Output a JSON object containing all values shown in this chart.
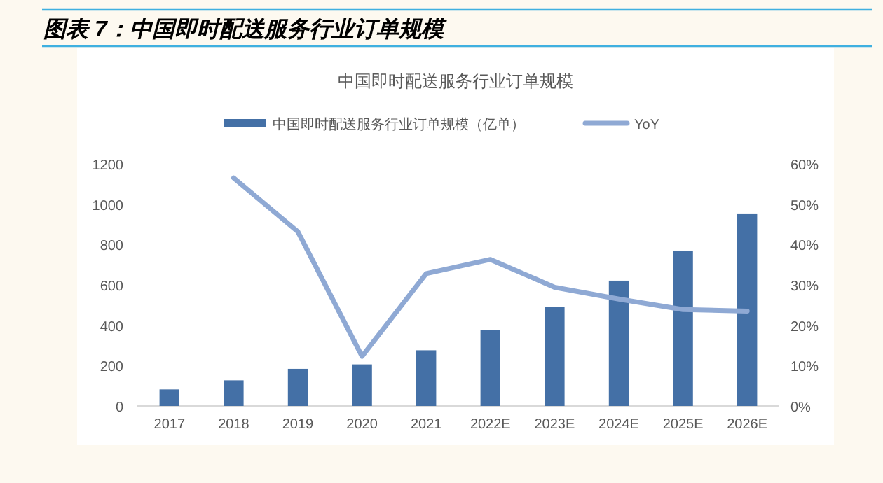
{
  "chart_data": {
    "type": "bar",
    "title": "图表 7：中国即时配送服务行业订单规模",
    "subtitle": "中国即时配送服务行业订单规模",
    "categories": [
      "2017",
      "2018",
      "2019",
      "2020",
      "2021",
      "2022E",
      "2023E",
      "2024E",
      "2025E",
      "2026E"
    ],
    "series": [
      {
        "name": "中国即时配送服务行业订单规模（亿单）",
        "color": "#4470a6",
        "values": [
          82,
          127,
          184,
          206,
          276,
          378,
          489,
          621,
          770,
          954
        ]
      },
      {
        "name": "YoY",
        "type": "line",
        "axis": "y2",
        "color": "#8fa9d4",
        "values": [
          null,
          56.5,
          43.2,
          12.3,
          32.8,
          36.3,
          29.4,
          26.5,
          23.9,
          23.5
        ]
      }
    ],
    "ylim": [
      0,
      1200
    ],
    "yticks": [
      0,
      200,
      400,
      600,
      800,
      1000,
      1200
    ],
    "y2lim": [
      0,
      60
    ],
    "y2ticks": [
      {
        "value": 0,
        "label": "0%"
      },
      {
        "value": 10,
        "label": "10%"
      },
      {
        "value": 20,
        "label": "20%"
      },
      {
        "value": 30,
        "label": "30%"
      },
      {
        "value": 40,
        "label": "40%"
      },
      {
        "value": 50,
        "label": "50%"
      },
      {
        "value": 60,
        "label": "60%"
      }
    ],
    "legend": "top"
  }
}
